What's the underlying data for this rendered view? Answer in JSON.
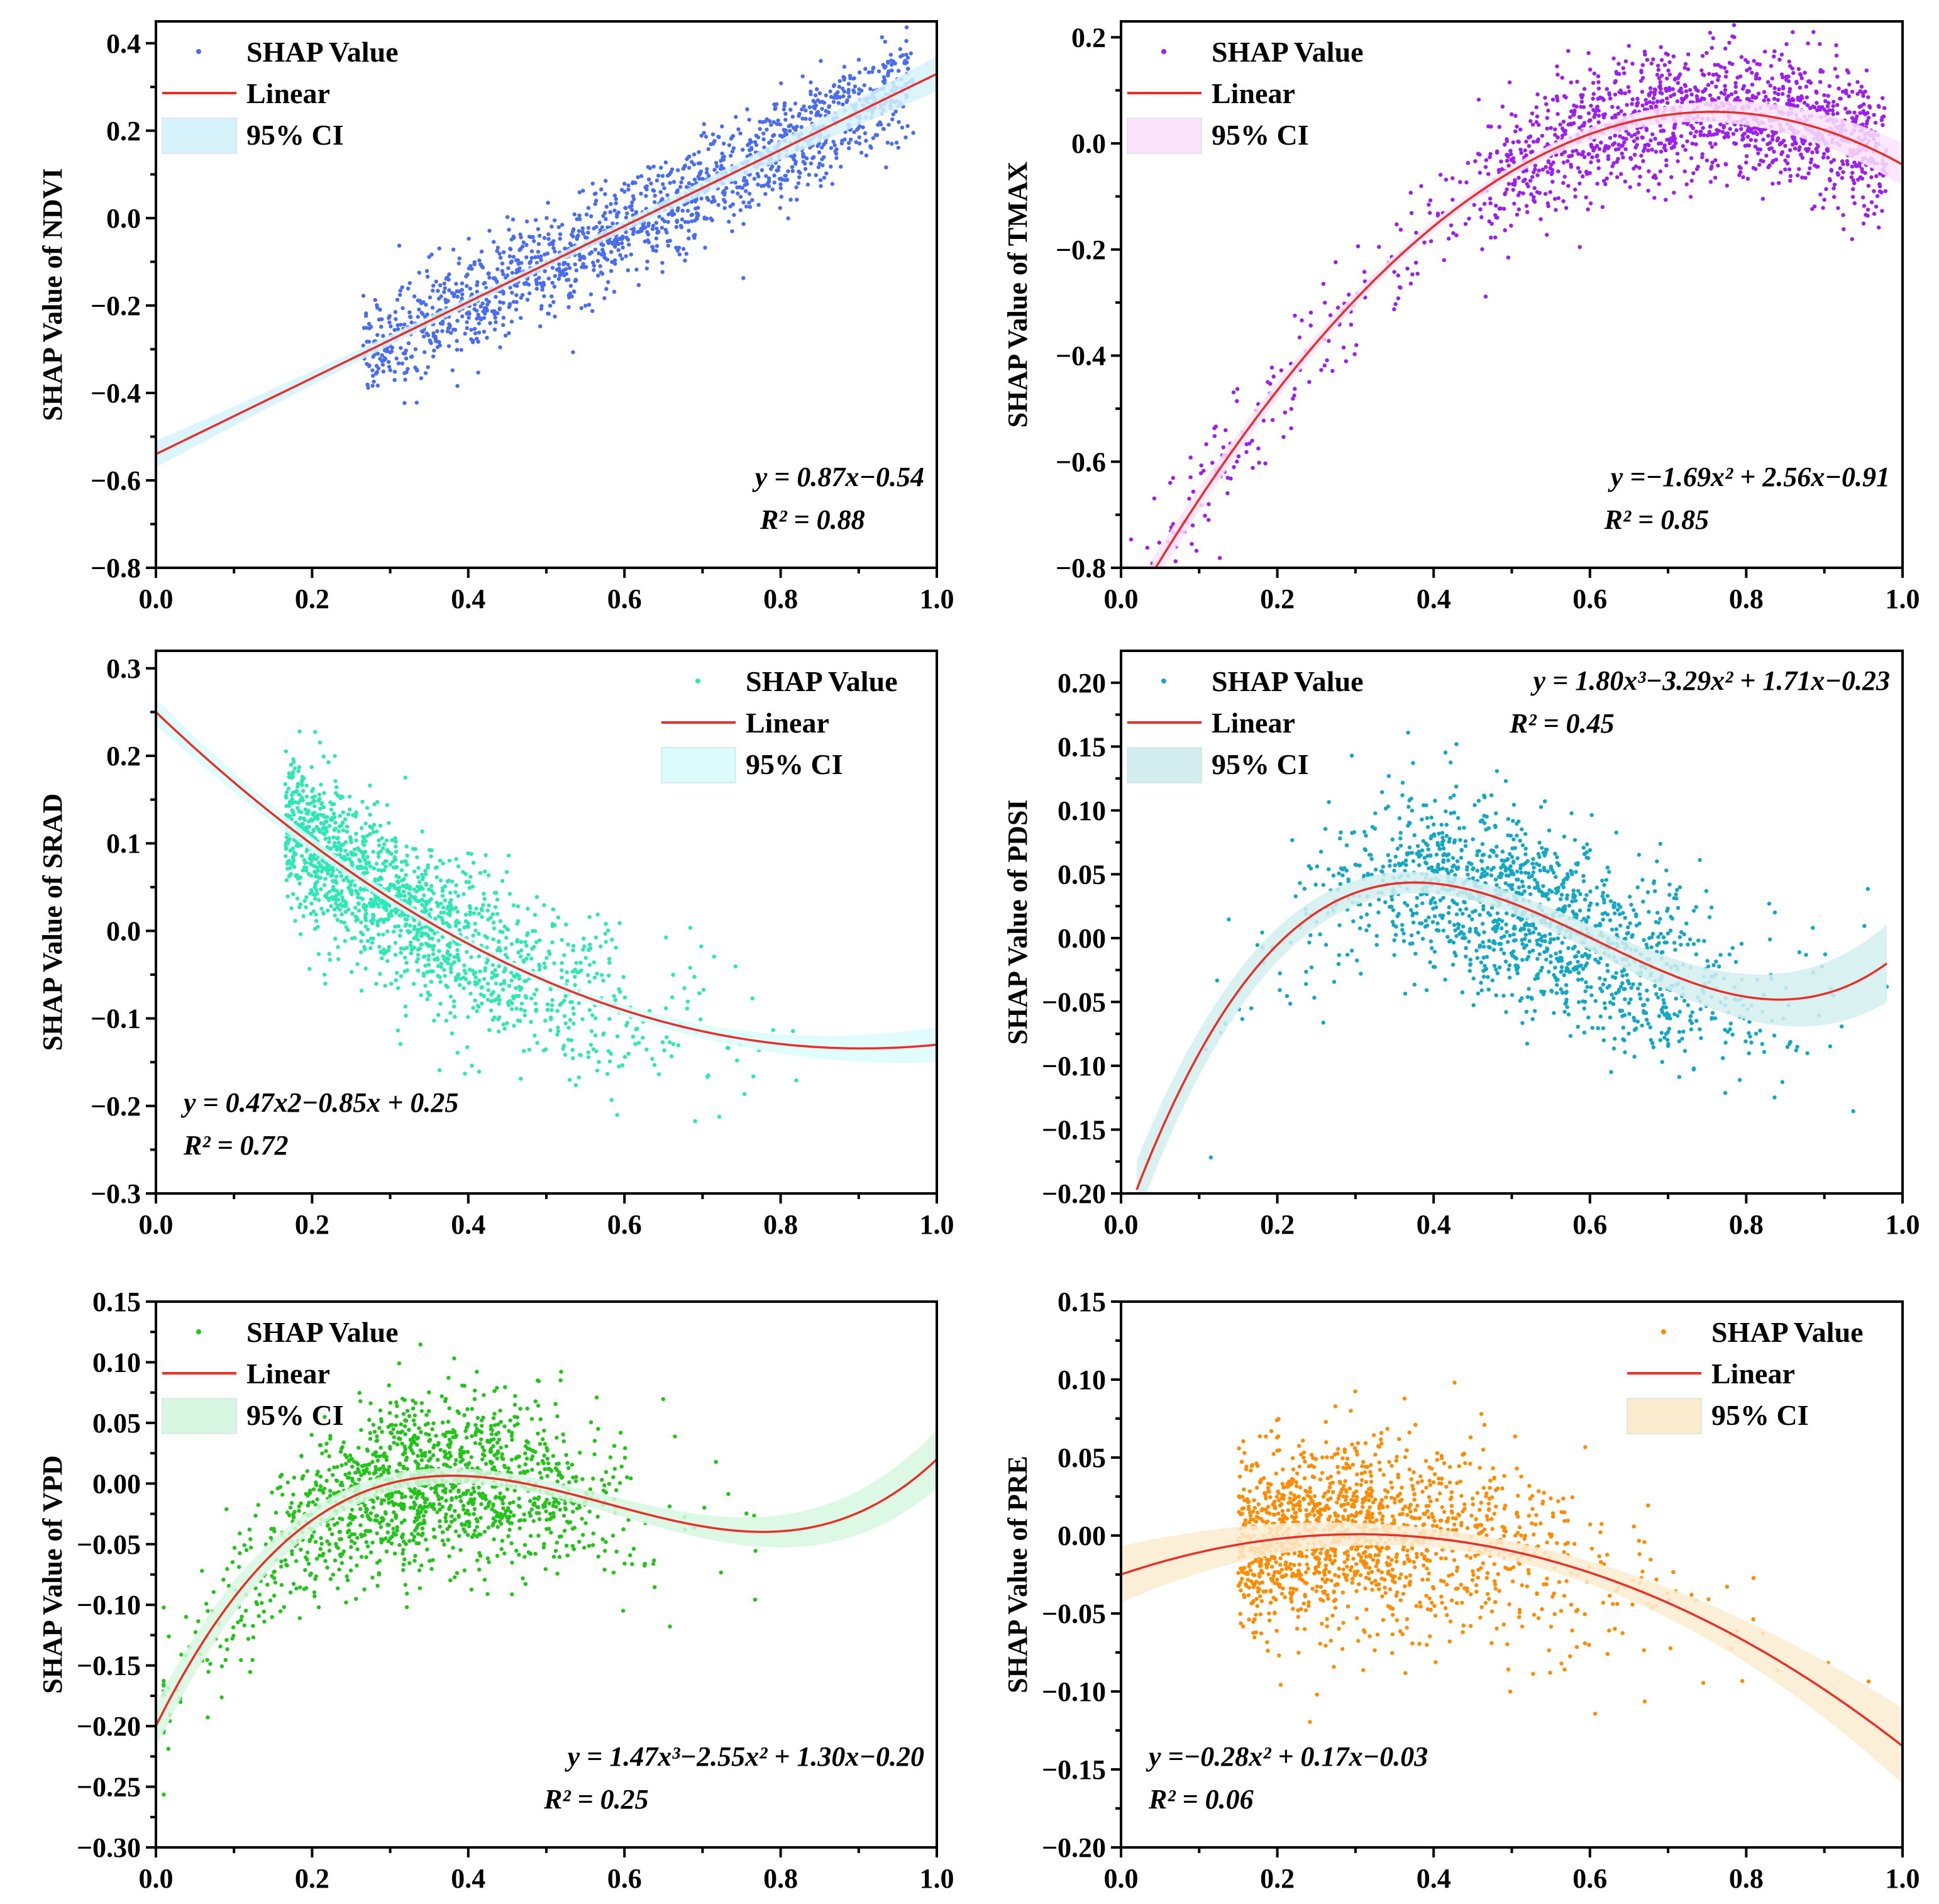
{
  "chart_data": [
    {
      "type": "scatter",
      "id": "ndvi",
      "ylabel": "SHAP Value of NDVI",
      "xlim": [
        0,
        1
      ],
      "ylim": [
        -0.8,
        0.45
      ],
      "xticks": [
        "0.0",
        "0.2",
        "0.4",
        "0.6",
        "0.8",
        "1.0"
      ],
      "yticks": [
        0.4,
        0.2,
        0.0,
        -0.2,
        -0.4,
        -0.6,
        -0.8
      ],
      "ytick_labels": [
        "0.4",
        "0.2",
        "0.0",
        "−0.2",
        "−0.4",
        "−0.6",
        "−0.8"
      ],
      "point_color": "#4a6cf0",
      "ci_color": "#d6f3fb",
      "coeffs": [
        -0.54,
        0.87
      ],
      "fit_range": [
        0,
        1
      ],
      "ci_width": 0.01,
      "scatter_model": {
        "x_range": [
          0.03,
          0.97
        ],
        "concentration": "center",
        "noise": 0.06,
        "count": 1600
      },
      "legend": {
        "position": "top-left",
        "items": [
          "SHAP Value",
          "Linear",
          "95% CI"
        ]
      },
      "equation": [
        "y = 0.87x−0.54",
        "R² = 0.88"
      ],
      "equation_position": "bottom-right"
    },
    {
      "type": "scatter",
      "id": "tmax",
      "ylabel": "SHAP Value of TMAX",
      "xlim": [
        0,
        1
      ],
      "ylim": [
        -0.8,
        0.23
      ],
      "xticks": [
        "0.0",
        "0.2",
        "0.4",
        "0.6",
        "0.8",
        "1.0"
      ],
      "yticks": [
        0.2,
        0.0,
        -0.2,
        -0.4,
        -0.6,
        -0.8
      ],
      "ytick_labels": [
        "0.2",
        "0.0",
        "−0.2",
        "−0.4",
        "−0.6",
        "−0.8"
      ],
      "point_color": "#9d1ef0",
      "ci_color": "#fbe3fb",
      "coeffs": [
        -0.91,
        2.56,
        -1.69
      ],
      "fit_range": [
        0.04,
        1
      ],
      "ci_width": 0.01,
      "scatter_model": {
        "x_range": [
          0.01,
          0.98
        ],
        "concentration": "right",
        "noise": 0.06,
        "count": 1600
      },
      "legend": {
        "position": "top-left",
        "items": [
          "SHAP Value",
          "Linear",
          "95% CI"
        ]
      },
      "equation": [
        "y =−1.69x² + 2.56x−0.91",
        "R² = 0.85"
      ],
      "equation_position": "bottom-right"
    },
    {
      "type": "scatter",
      "id": "srad",
      "ylabel": "SHAP Value of SRAD",
      "xlim": [
        0,
        1
      ],
      "ylim": [
        -0.3,
        0.32
      ],
      "xticks": [
        "0.0",
        "0.2",
        "0.4",
        "0.6",
        "0.8",
        "1.0"
      ],
      "yticks": [
        0.3,
        0.2,
        0.1,
        0.0,
        -0.1,
        -0.2,
        -0.3
      ],
      "ytick_labels": [
        "0.3",
        "0.2",
        "0.1",
        "0.0",
        "−0.1",
        "−0.2",
        "−0.3"
      ],
      "point_color": "#2de8b4",
      "ci_color": "#dcfbfb",
      "coeffs": [
        0.25,
        -0.85,
        0.47
      ],
      "fit_range": [
        0,
        1
      ],
      "ci_width": 0.005,
      "scatter_model": {
        "x_range": [
          0.02,
          0.99
        ],
        "concentration": "left",
        "noise": 0.045,
        "count": 1600
      },
      "legend": {
        "position": "top-right",
        "items": [
          "SHAP Value",
          "Linear",
          "95% CI"
        ]
      },
      "equation": [
        "y = 0.47x2−0.85x + 0.25",
        "R² = 0.72"
      ],
      "equation_position": "bottom-left"
    },
    {
      "type": "scatter",
      "id": "pdsi",
      "ylabel": "SHAP Value of PDSI",
      "xlim": [
        0,
        1
      ],
      "ylim": [
        -0.2,
        0.225
      ],
      "xticks": [
        "0.0",
        "0.2",
        "0.4",
        "0.6",
        "0.8",
        "1.0"
      ],
      "yticks": [
        0.2,
        0.15,
        0.1,
        0.05,
        0.0,
        -0.05,
        -0.1,
        -0.15,
        -0.2
      ],
      "ytick_labels": [
        "0.20",
        "0.15",
        "0.10",
        "0.05",
        "0.00",
        "−0.05",
        "−0.10",
        "−0.15",
        "−0.20"
      ],
      "point_color": "#12a8c4",
      "ci_color": "#d4eef0",
      "coeffs": [
        -0.23,
        1.71,
        -3.29,
        1.8
      ],
      "fit_range": [
        0.02,
        0.98
      ],
      "ci_width": 0.008,
      "scatter_model": {
        "x_range": [
          0.0,
          0.98
        ],
        "concentration": "mid",
        "noise": 0.035,
        "count": 1500
      },
      "legend": {
        "position": "top-left",
        "items": [
          "SHAP Value",
          "Linear",
          "95% CI"
        ]
      },
      "equation": [
        "y = 1.80x³−3.29x² + 1.71x−0.23",
        "R² = 0.45"
      ],
      "equation_position": "top-right"
    },
    {
      "type": "scatter",
      "id": "vpd",
      "ylabel": "SHAP Value of VPD",
      "xlim": [
        0,
        1
      ],
      "ylim": [
        -0.3,
        0.15
      ],
      "xticks": [
        "0.0",
        "0.2",
        "0.4",
        "0.6",
        "0.8",
        "1.0"
      ],
      "yticks": [
        0.15,
        0.1,
        0.05,
        0.0,
        -0.05,
        -0.1,
        -0.15,
        -0.2,
        -0.25,
        -0.3
      ],
      "ytick_labels": [
        "0.15",
        "0.10",
        "0.05",
        "0.00",
        "−0.05",
        "−0.10",
        "−0.15",
        "−0.20",
        "−0.25",
        "−0.30"
      ],
      "point_color": "#22c41a",
      "ci_color": "#d8f7e2",
      "coeffs": [
        -0.2,
        1.3,
        -2.55,
        1.47
      ],
      "fit_range": [
        0,
        1
      ],
      "ci_width": 0.006,
      "scatter_model": {
        "x_range": [
          0.01,
          0.88
        ],
        "concentration": "left-mid",
        "noise": 0.035,
        "count": 1500
      },
      "legend": {
        "position": "top-left",
        "items": [
          "SHAP Value",
          "Linear",
          "95% CI"
        ]
      },
      "equation": [
        "y = 1.47x³−2.55x² + 1.30x−0.20",
        "R² = 0.25"
      ],
      "equation_position": "bottom-right"
    },
    {
      "type": "scatter",
      "id": "pre",
      "ylabel": "SHAP Value of PRE",
      "xlim": [
        0,
        1
      ],
      "ylim": [
        -0.2,
        0.15
      ],
      "xticks": [
        "0.0",
        "0.2",
        "0.4",
        "0.6",
        "0.8",
        "1.0"
      ],
      "yticks": [
        0.15,
        0.1,
        0.05,
        0.0,
        -0.05,
        -0.1,
        -0.15,
        -0.2
      ],
      "ytick_labels": [
        "0.15",
        "0.10",
        "0.05",
        "0.00",
        "−0.05",
        "−0.10",
        "−0.15",
        "−0.20"
      ],
      "point_color": "#ff8c00",
      "ci_color": "#fbecd0",
      "coeffs": [
        -0.025,
        0.17,
        -0.28
      ],
      "fit_range": [
        0,
        1
      ],
      "ci_width": 0.006,
      "scatter_model": {
        "x_range": [
          0.0,
          1.0
        ],
        "concentration": "left",
        "noise": 0.03,
        "count": 1500
      },
      "legend": {
        "position": "top-right",
        "items": [
          "SHAP Value",
          "Linear",
          "95% CI"
        ]
      },
      "equation": [
        "y =−0.28x² + 0.17x−0.03",
        "R² = 0.06"
      ],
      "equation_position": "bottom-left"
    }
  ]
}
